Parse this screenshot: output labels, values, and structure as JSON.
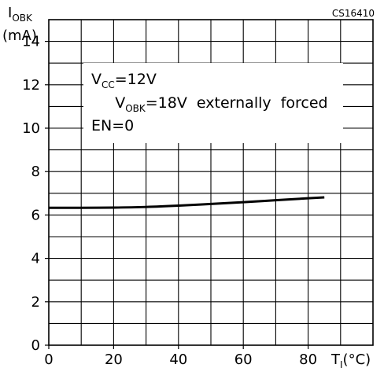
{
  "figure_ref": "CS16410",
  "chart_data": {
    "type": "line",
    "ylabel": {
      "main": "I",
      "sub": "OBK",
      "unit": "(mA)"
    },
    "xlabel": {
      "main": "T",
      "sub": "J",
      "unit": "(°C)"
    },
    "xlim": [
      0,
      100
    ],
    "ylim": [
      0,
      15
    ],
    "xticks": [
      0,
      20,
      40,
      60,
      80
    ],
    "yticks": [
      0,
      2,
      4,
      6,
      8,
      10,
      12,
      14
    ],
    "grid": true,
    "annotations": {
      "line1": {
        "main": "V",
        "sub": "CC",
        "rest": "=12V"
      },
      "line2": {
        "main": "V",
        "sub": "OBK",
        "rest": "=18V  externally  forced"
      },
      "line3": "EN=0"
    },
    "series": [
      {
        "x": [
          0,
          10,
          20,
          30,
          40,
          50,
          60,
          70,
          80,
          85
        ],
        "y": [
          6.33,
          6.33,
          6.34,
          6.37,
          6.43,
          6.51,
          6.59,
          6.68,
          6.77,
          6.81
        ]
      }
    ]
  }
}
